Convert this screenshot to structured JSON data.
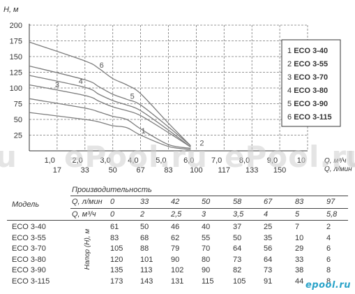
{
  "chart_data": {
    "type": "line",
    "ylabel": "H, м",
    "y_ticks": [
      25,
      50,
      75,
      100,
      125,
      150,
      175,
      200
    ],
    "ylim": [
      0,
      200
    ],
    "x_ticks_m3h": [
      "1,0",
      "2,0",
      "3,0",
      "4,0",
      "5,0",
      "6,0",
      "7,0",
      "8,0",
      "9,0",
      "10"
    ],
    "x_ticks_lmin": [
      "17",
      "33",
      "50",
      "67",
      "83",
      "100",
      "117",
      "133",
      "150"
    ],
    "x_unit_m3h": "Q, м³/ч",
    "x_unit_lmin": "Q, л/мин",
    "xlim": [
      0,
      10
    ],
    "x_points": [
      0,
      2,
      2.5,
      3,
      3.5,
      4,
      5,
      5.8
    ],
    "series": [
      {
        "name": "ECO 3-40",
        "curve_label": "1",
        "values": [
          61,
          50,
          46,
          40,
          37,
          25,
          7,
          2
        ]
      },
      {
        "name": "ECO 3-55",
        "curve_label": "2",
        "values": [
          83,
          68,
          62,
          55,
          50,
          35,
          10,
          4
        ]
      },
      {
        "name": "ECO 3-70",
        "curve_label": "3",
        "values": [
          105,
          88,
          79,
          70,
          64,
          56,
          29,
          6
        ]
      },
      {
        "name": "ECO 3-80",
        "curve_label": "4",
        "values": [
          120,
          101,
          90,
          80,
          73,
          64,
          33,
          6
        ]
      },
      {
        "name": "ECO 3-90",
        "curve_label": "5",
        "values": [
          135,
          113,
          102,
          90,
          82,
          73,
          38,
          8
        ]
      },
      {
        "name": "ECO 3-115",
        "curve_label": "6",
        "values": [
          173,
          143,
          131,
          115,
          105,
          91,
          44,
          8
        ]
      }
    ],
    "legend_entries": [
      {
        "num": "1",
        "label": "ECO 3-40"
      },
      {
        "num": "2",
        "label": "ECO 3-55"
      },
      {
        "num": "3",
        "label": "ECO 3-70"
      },
      {
        "num": "4",
        "label": "ECO 3-80"
      },
      {
        "num": "5",
        "label": "ECO 3-90"
      },
      {
        "num": "6",
        "label": "ECO 3-115"
      }
    ],
    "legend_position": "right",
    "grid": true
  },
  "table": {
    "performance_title": "Производительность",
    "model_header": "Модель",
    "q_lmin_label": "Q, л/мин",
    "q_m3h_label": "Q, м³/ч",
    "head_label": "Напор (Н), м",
    "q_lmin": [
      "0",
      "33",
      "42",
      "50",
      "58",
      "67",
      "83",
      "97"
    ],
    "q_m3h": [
      "0",
      "2",
      "2,5",
      "3",
      "3,5",
      "4",
      "5",
      "5,8"
    ],
    "rows": [
      {
        "model": "ECO 3-40",
        "values": [
          "61",
          "50",
          "46",
          "40",
          "37",
          "25",
          "7",
          "2"
        ]
      },
      {
        "model": "ECO 3-55",
        "values": [
          "83",
          "68",
          "62",
          "55",
          "50",
          "35",
          "10",
          "4"
        ]
      },
      {
        "model": "ECO 3-70",
        "values": [
          "105",
          "88",
          "79",
          "70",
          "64",
          "56",
          "29",
          "6"
        ]
      },
      {
        "model": "ECO 3-80",
        "values": [
          "120",
          "101",
          "90",
          "80",
          "73",
          "64",
          "33",
          "6"
        ]
      },
      {
        "model": "ECO 3-90",
        "values": [
          "135",
          "113",
          "102",
          "90",
          "82",
          "73",
          "38",
          "8"
        ]
      },
      {
        "model": "ECO 3-115",
        "values": [
          "173",
          "143",
          "131",
          "115",
          "105",
          "91",
          "44",
          "8"
        ]
      }
    ]
  },
  "watermarks": [
    "u",
    "ePool.ru",
    "ePool.ru",
    "u"
  ],
  "logo_text": "epool.ru"
}
